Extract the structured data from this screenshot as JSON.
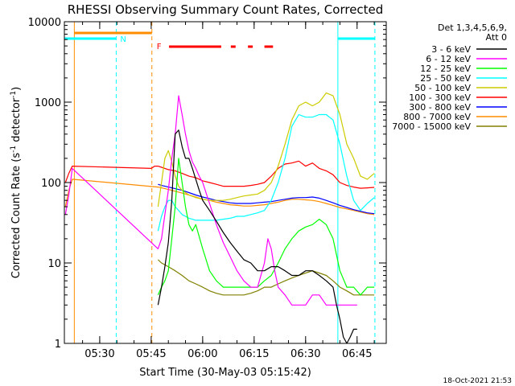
{
  "chart_data": {
    "type": "line",
    "title": "RHESSI Observing Summary Count Rates, Corrected",
    "xlabel": "Start Time (30-May-03 05:15:42)",
    "ylabel_main": "Corrected Count Rate (s",
    "ylabel_sup1": "-1",
    "ylabel_mid": " detector",
    "ylabel_sup2": "-1",
    "ylabel_end": ")",
    "y_scale": "log",
    "ylim": [
      1,
      10000
    ],
    "xlim_min": [
      19.7,
      113.5
    ],
    "y_ticks": [
      {
        "value": 1,
        "label": "1"
      },
      {
        "value": 10,
        "label": "10"
      },
      {
        "value": 100,
        "label": "100"
      },
      {
        "value": 1000,
        "label": "1000"
      },
      {
        "value": 10000,
        "label": "10000"
      }
    ],
    "x_ticks": [
      {
        "value": 30,
        "label": "05:30"
      },
      {
        "value": 45,
        "label": "05:45"
      },
      {
        "value": 60,
        "label": "06:00"
      },
      {
        "value": 75,
        "label": "06:15"
      },
      {
        "value": 90,
        "label": "06:30"
      },
      {
        "value": 105,
        "label": "06:45"
      }
    ],
    "legend_header_line1": "Det 1,3,4,5,6,9,",
    "legend_header_line2": "Att 0",
    "legend_position": "right",
    "footer_timestamp": "18-Oct-2021 21:53",
    "flag_labels": {
      "night": "N",
      "flare": "F"
    },
    "colors": {
      "cyan": "#00ffff",
      "orange": "#ff8c00",
      "red": "#ff0000"
    },
    "event_markers": {
      "cyan_solid": [
        19.7,
        99.4
      ],
      "cyan_dashed": [
        34.8,
        110.2
      ],
      "orange_solid": [
        22.6
      ],
      "orange_dashed": [
        45.2
      ],
      "night_bars": [
        [
          19.7,
          34.8
        ],
        [
          99.4,
          110.2
        ]
      ],
      "saa_bars": [
        [
          22.6,
          45.2
        ]
      ],
      "flare_bars": [
        [
          50.2,
          65.4
        ],
        [
          68.2,
          69.6
        ],
        [
          73.2,
          74.6
        ],
        [
          78.0,
          80.5
        ]
      ]
    },
    "series": [
      {
        "name": "3 - 6 keV",
        "color": "#000000",
        "x": [
          47,
          48,
          49,
          50,
          51,
          52,
          53,
          54,
          55,
          56,
          57,
          58,
          59,
          60,
          62,
          64,
          66,
          68,
          70,
          72,
          74,
          76,
          78,
          80,
          82,
          84,
          86,
          88,
          90,
          92,
          94,
          96,
          98,
          99,
          100,
          101,
          102,
          103,
          104,
          105
        ],
        "y": [
          3,
          5,
          9,
          18,
          60,
          400,
          450,
          280,
          200,
          200,
          150,
          110,
          80,
          60,
          45,
          33,
          24,
          18,
          14,
          11,
          10,
          8,
          8,
          9,
          9,
          8,
          7,
          7,
          8,
          8,
          7,
          6,
          5,
          3,
          2,
          1.2,
          1,
          1.2,
          1.5,
          1.5
        ]
      },
      {
        "name": "6 - 12 keV",
        "color": "#ff00ff",
        "x": [
          20,
          21,
          22,
          47,
          48,
          49,
          50,
          51,
          52,
          53,
          54,
          55,
          56,
          57,
          58,
          59,
          60,
          62,
          64,
          66,
          68,
          70,
          72,
          74,
          76,
          78,
          79,
          80,
          81,
          82,
          84,
          86,
          88,
          90,
          92,
          94,
          96,
          98,
          100,
          102,
          104,
          105
        ],
        "y": [
          40,
          70,
          150,
          15,
          20,
          40,
          80,
          200,
          400,
          1200,
          700,
          400,
          250,
          180,
          150,
          120,
          100,
          55,
          30,
          18,
          12,
          8,
          6,
          5,
          5,
          10,
          20,
          15,
          8,
          5,
          4,
          3,
          3,
          3,
          4,
          4,
          3,
          3,
          3,
          3,
          3,
          3
        ]
      },
      {
        "name": "12 - 25 keV",
        "color": "#00ff00",
        "x": [
          47,
          48,
          49,
          50,
          51,
          52,
          53,
          54,
          55,
          56,
          57,
          58,
          60,
          62,
          64,
          66,
          68,
          70,
          72,
          74,
          76,
          78,
          80,
          82,
          84,
          86,
          88,
          90,
          92,
          94,
          96,
          98,
          100,
          102,
          104,
          106,
          108,
          110
        ],
        "y": [
          4,
          5,
          6,
          8,
          20,
          50,
          200,
          100,
          50,
          30,
          25,
          30,
          15,
          8,
          6,
          5,
          5,
          5,
          5,
          5,
          5,
          6,
          7,
          10,
          15,
          20,
          25,
          28,
          30,
          35,
          30,
          20,
          8,
          5,
          5,
          4,
          5,
          5
        ]
      },
      {
        "name": "25 - 50 keV",
        "color": "#00ffff",
        "x": [
          47,
          48,
          49,
          50,
          51,
          52,
          53,
          54,
          55,
          56,
          57,
          58,
          60,
          62,
          64,
          66,
          68,
          70,
          72,
          74,
          76,
          78,
          80,
          82,
          84,
          86,
          88,
          90,
          92,
          94,
          96,
          98,
          100,
          102,
          104,
          106,
          108,
          110
        ],
        "y": [
          25,
          38,
          50,
          60,
          60,
          50,
          45,
          40,
          38,
          36,
          35,
          34,
          34,
          34,
          34,
          35,
          36,
          38,
          38,
          40,
          42,
          45,
          60,
          100,
          200,
          500,
          700,
          650,
          650,
          700,
          700,
          600,
          300,
          120,
          60,
          45,
          55,
          65
        ]
      },
      {
        "name": "50 - 100 keV",
        "color": "#cccc00",
        "x": [
          47,
          48,
          49,
          50,
          51,
          52,
          53,
          54,
          55,
          56,
          58,
          60,
          62,
          64,
          66,
          68,
          70,
          72,
          74,
          76,
          78,
          80,
          82,
          84,
          86,
          88,
          90,
          92,
          94,
          96,
          98,
          100,
          102,
          104,
          106,
          108,
          110
        ],
        "y": [
          50,
          100,
          200,
          250,
          180,
          120,
          90,
          80,
          75,
          70,
          65,
          62,
          60,
          60,
          60,
          62,
          65,
          68,
          70,
          72,
          80,
          100,
          160,
          300,
          600,
          900,
          1000,
          900,
          1000,
          1300,
          1200,
          700,
          300,
          200,
          120,
          110,
          130
        ]
      },
      {
        "name": "100 - 300 keV",
        "color": "#ff0000",
        "x": [
          20,
          21,
          22,
          45,
          46,
          47,
          48,
          50,
          52,
          54,
          56,
          58,
          60,
          62,
          64,
          66,
          68,
          70,
          72,
          74,
          76,
          78,
          80,
          82,
          84,
          86,
          88,
          90,
          92,
          94,
          96,
          98,
          100,
          102,
          104,
          106,
          108,
          110
        ],
        "y": [
          100,
          130,
          160,
          150,
          160,
          160,
          155,
          145,
          140,
          130,
          120,
          115,
          105,
          100,
          95,
          90,
          90,
          90,
          90,
          92,
          95,
          100,
          120,
          150,
          170,
          175,
          185,
          160,
          175,
          150,
          140,
          125,
          100,
          92,
          88,
          85,
          86,
          87
        ]
      },
      {
        "name": "300 - 800 keV",
        "color": "#0000ff",
        "x": [
          47,
          48,
          50,
          52,
          54,
          56,
          58,
          60,
          62,
          64,
          66,
          68,
          70,
          72,
          74,
          76,
          78,
          80,
          82,
          84,
          86,
          88,
          90,
          92,
          94,
          96,
          98,
          100,
          102,
          104,
          106,
          108,
          110
        ],
        "y": [
          95,
          92,
          88,
          84,
          80,
          75,
          70,
          66,
          63,
          60,
          58,
          56,
          55,
          55,
          55,
          56,
          57,
          58,
          60,
          62,
          64,
          65,
          65,
          66,
          64,
          60,
          56,
          52,
          49,
          46,
          44,
          42,
          41
        ]
      },
      {
        "name": "800 - 7000 keV",
        "color": "#ff8c00",
        "x": [
          20,
          21,
          22,
          47,
          48,
          50,
          52,
          54,
          56,
          58,
          60,
          62,
          64,
          66,
          68,
          70,
          72,
          74,
          76,
          78,
          80,
          82,
          84,
          86,
          88,
          90,
          92,
          94,
          96,
          98,
          100,
          102,
          104,
          106,
          108,
          110
        ],
        "y": [
          50,
          80,
          110,
          88,
          86,
          82,
          78,
          74,
          70,
          66,
          62,
          60,
          57,
          55,
          53,
          52,
          51,
          51,
          52,
          53,
          55,
          57,
          60,
          62,
          62,
          61,
          60,
          58,
          55,
          52,
          49,
          47,
          45,
          43,
          41,
          40
        ]
      },
      {
        "name": "7000 - 15000 keV",
        "color": "#808000",
        "x": [
          47,
          48,
          50,
          52,
          54,
          56,
          58,
          60,
          62,
          64,
          66,
          68,
          70,
          72,
          74,
          76,
          78,
          80,
          82,
          84,
          86,
          88,
          90,
          92,
          94,
          96,
          98,
          100,
          102,
          104,
          106,
          108,
          110
        ],
        "y": [
          11,
          10,
          9,
          8,
          7,
          6,
          5.5,
          5,
          4.5,
          4.2,
          4,
          4,
          4,
          4,
          4.2,
          4.5,
          5,
          5,
          5.5,
          6,
          6.5,
          7,
          7.5,
          8,
          7.5,
          7,
          6,
          5,
          4.5,
          4,
          4,
          4,
          4
        ]
      }
    ]
  }
}
